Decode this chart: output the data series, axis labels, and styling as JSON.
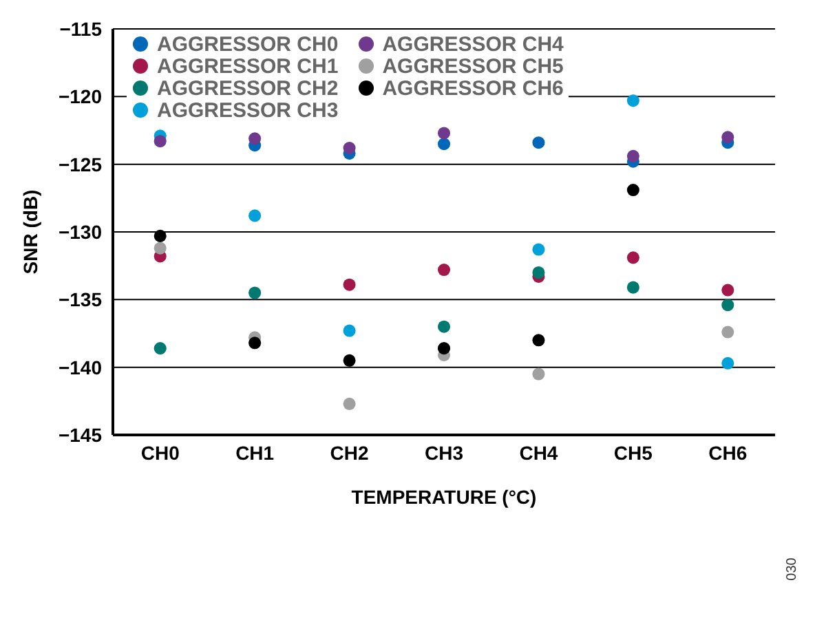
{
  "chart_data": {
    "type": "scatter",
    "xlabel": "TEMPERATURE (°C)",
    "ylabel": "SNR (dB)",
    "categories": [
      "CH0",
      "CH1",
      "CH2",
      "CH3",
      "CH4",
      "CH5",
      "CH6"
    ],
    "series": [
      {
        "name": "AGGRESSOR CH0",
        "color": "#0067b9",
        "values": [
          null,
          -123.6,
          -124.2,
          -123.5,
          -123.4,
          -124.8,
          -123.4
        ]
      },
      {
        "name": "AGGRESSOR CH1",
        "color": "#a3174a",
        "values": [
          -131.8,
          null,
          -133.9,
          -132.8,
          -133.3,
          -131.9,
          -134.3
        ]
      },
      {
        "name": "AGGRESSOR CH2",
        "color": "#007a70",
        "values": [
          -138.6,
          -134.5,
          null,
          -137.0,
          -133.0,
          -134.1,
          -135.4
        ]
      },
      {
        "name": "AGGRESSOR CH3",
        "color": "#00a0db",
        "values": [
          -122.9,
          -128.8,
          -137.3,
          null,
          -131.3,
          -120.3,
          -139.7
        ]
      },
      {
        "name": "AGGRESSOR CH4",
        "color": "#6f3a8e",
        "values": [
          -123.3,
          -123.1,
          -123.8,
          -122.7,
          null,
          -124.4,
          -123.0
        ]
      },
      {
        "name": "AGGRESSOR CH5",
        "color": "#a0a0a0",
        "values": [
          -131.2,
          -137.8,
          -142.7,
          -139.1,
          -140.5,
          null,
          -137.4
        ]
      },
      {
        "name": "AGGRESSOR CH6",
        "color": "#000000",
        "values": [
          -130.3,
          -138.2,
          -139.5,
          -138.6,
          -138.0,
          -126.9,
          null
        ]
      }
    ],
    "ylim": [
      -145,
      -115
    ],
    "yticks": [
      -145,
      -140,
      -135,
      -130,
      -125,
      -120,
      -115
    ],
    "grid": "y",
    "legend": "top left",
    "marker": "circle",
    "annotations": [
      "030"
    ]
  }
}
